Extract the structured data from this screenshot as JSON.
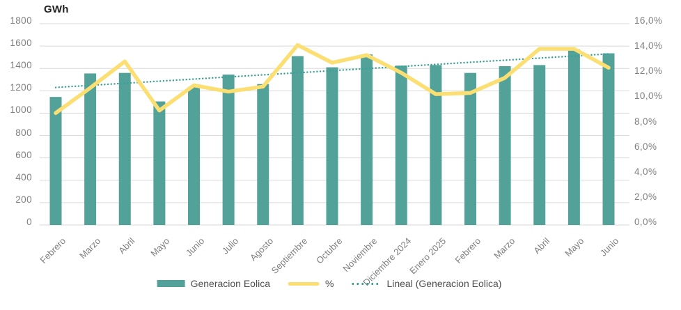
{
  "title": "GWh",
  "chart_data": {
    "type": "bar+line combo",
    "categories": [
      "Febrero",
      "Marzo",
      "Abril",
      "Mayo",
      "Junio",
      "Julio",
      "Agosto",
      "Septiembre",
      "Octubre",
      "Noviembre",
      "Diciembre 2024",
      "Enero 2025",
      "Febrero",
      "Marzo",
      "Abril",
      "Mayo",
      "Junio"
    ],
    "series": [
      {
        "name": "Generacion Eolica",
        "type": "bar",
        "axis": "left",
        "unit": "GWh",
        "values": [
          1145,
          1355,
          1360,
          1105,
          1235,
          1345,
          1260,
          1510,
          1410,
          1525,
          1425,
          1430,
          1360,
          1420,
          1430,
          1570,
          1535
        ]
      },
      {
        "name": "%",
        "type": "line",
        "axis": "right",
        "unit": "%",
        "values": [
          8.9,
          10.9,
          13.0,
          9.1,
          11.1,
          10.6,
          11.0,
          14.3,
          12.9,
          13.5,
          12.1,
          10.4,
          10.5,
          11.7,
          14.0,
          14.0,
          12.5
        ]
      },
      {
        "name": "Lineal (Generacion Eolica)",
        "type": "trendline",
        "axis": "left",
        "style": "dotted",
        "endpoints": [
          1230,
          1530
        ]
      }
    ],
    "left_axis": {
      "title": "GWh",
      "min": 0,
      "max": 1800,
      "step": 200,
      "ticks": [
        "1800",
        "1600",
        "1400",
        "1200",
        "1000",
        "800",
        "600",
        "400",
        "200",
        "0"
      ]
    },
    "right_axis": {
      "min": 0,
      "max": 16,
      "step": 2,
      "ticks": [
        "16,0%",
        "14,0%",
        "12,0%",
        "10,0%",
        "8,0%",
        "6,0%",
        "4,0%",
        "2,0%",
        "0,0%"
      ]
    },
    "grid": true,
    "legend_position": "bottom"
  },
  "legend": {
    "items": [
      {
        "label": "Generacion Eolica",
        "swatch": "bar"
      },
      {
        "label": "%",
        "swatch": "line"
      },
      {
        "label": "Lineal (Generacion Eolica)",
        "swatch": "dotted"
      }
    ]
  },
  "colors": {
    "bar": "#52a29a",
    "pct_line": "#fbdf72",
    "trendline": "#3aa095",
    "grid": "#d9d9d9",
    "tick_text": "#7f7f7f",
    "legend_text": "#4d4d4d",
    "title_text": "#1f1f1f"
  }
}
